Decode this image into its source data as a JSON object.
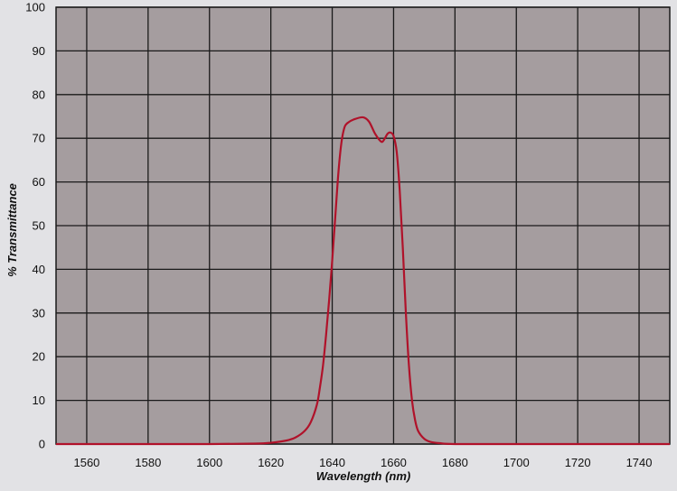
{
  "chart_data": {
    "type": "line",
    "title": "",
    "xlabel": "Wavelength (nm)",
    "ylabel": "% Transmittance",
    "xlim": [
      1550,
      1750
    ],
    "ylim": [
      0,
      100
    ],
    "x_ticks": [
      1560,
      1580,
      1600,
      1620,
      1640,
      1660,
      1680,
      1700,
      1720,
      1740
    ],
    "y_ticks": [
      0,
      10,
      20,
      30,
      40,
      50,
      60,
      70,
      80,
      90,
      100
    ],
    "grid": true,
    "legend": "none",
    "colors": {
      "plot_bg": "#a59d9f",
      "grid": "#1a1a1a",
      "line": "#b0122a",
      "page_bg": "#e2e2e5"
    },
    "series": [
      {
        "x": [
          1550,
          1580,
          1600,
          1615,
          1620,
          1625,
          1628,
          1631,
          1633,
          1635,
          1636,
          1637,
          1638,
          1639,
          1640,
          1641,
          1642,
          1643,
          1644,
          1645,
          1647,
          1650,
          1652,
          1654,
          1656,
          1657,
          1658,
          1659,
          1660,
          1661,
          1662,
          1663,
          1664,
          1665,
          1666,
          1667,
          1668,
          1670,
          1672,
          1675,
          1680,
          1700,
          1750
        ],
        "y": [
          0,
          0,
          0,
          0.1,
          0.3,
          0.8,
          1.5,
          3,
          5,
          9,
          13,
          18,
          25,
          33,
          42,
          52,
          62,
          69,
          72.5,
          73.5,
          74.3,
          74.8,
          73.8,
          71,
          69.2,
          69.8,
          71,
          71.3,
          70.5,
          67,
          58,
          45,
          30,
          18,
          10,
          5.5,
          3,
          1.2,
          0.5,
          0.2,
          0,
          0,
          0
        ]
      }
    ]
  }
}
